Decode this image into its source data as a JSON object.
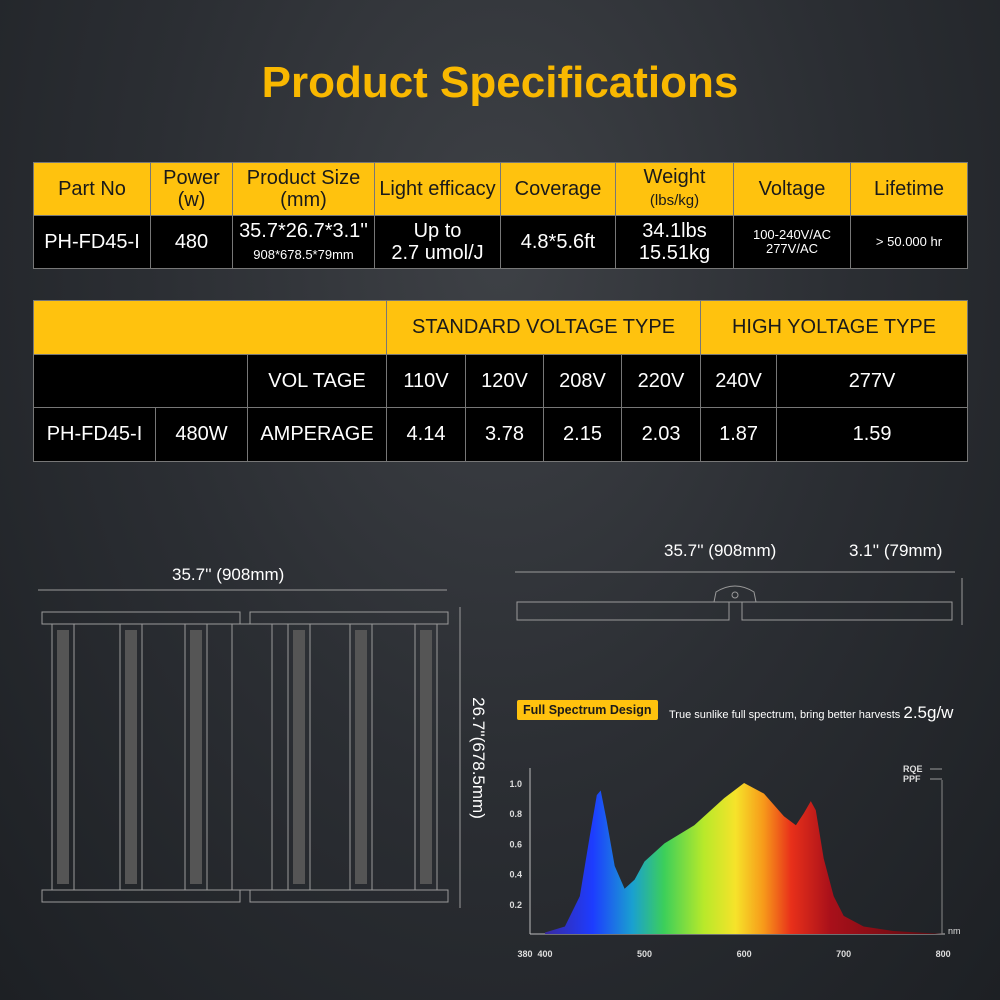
{
  "title": "Product Specifications",
  "spec_table": {
    "headers": [
      [
        "Part No",
        ""
      ],
      [
        "Power",
        "(w)"
      ],
      [
        "Product Size",
        "(mm)"
      ],
      [
        "Light efficacy",
        ""
      ],
      [
        "Coverage",
        ""
      ],
      [
        "Weight",
        "(lbs/kg)"
      ],
      [
        "Voltage",
        ""
      ],
      [
        "Lifetime",
        ""
      ]
    ],
    "row": {
      "part_no": "PH-FD45-I",
      "power": "480",
      "size_in": "35.7*26.7*3.1''",
      "size_mm": "908*678.5*79mm",
      "efficacy_1": "Up to",
      "efficacy_2": "2.7 umol/J",
      "coverage": "4.8*5.6ft",
      "weight_lbs": "34.1lbs",
      "weight_kg": "15.51kg",
      "voltage_1": "100-240V/AC",
      "voltage_2": "277V/AC",
      "lifetime": "> 50.000 hr"
    }
  },
  "voltage_table": {
    "standard_label": "STANDARD VOLTAGE TYPE",
    "high_label": "HIGH YOLTAGE TYPE",
    "voltage_label": "VOL TAGE",
    "voltages": [
      "110V",
      "120V",
      "208V",
      "220V",
      "240V",
      "277V"
    ],
    "part_no": "PH-FD45-I",
    "power": "480W",
    "amperage_label": "AMPERAGE",
    "amperages": [
      "4.14",
      "3.78",
      "2.15",
      "2.03",
      "1.87",
      "1.59"
    ]
  },
  "diagram": {
    "width_label": "35.7'' (908mm)",
    "height_label": "26.7''(678.5mm)",
    "side_width_label": "35.7'' (908mm)",
    "side_depth_label": "3.1'' (79mm)"
  },
  "spectrum": {
    "badge": "Full Spectrum Design",
    "tagline": "True sunlike full spectrum, bring better harvests",
    "yield": "2.5g/w"
  },
  "chart_data": {
    "type": "area",
    "title": "Full Spectrum Design",
    "xlabel": "nm",
    "ylabel": "",
    "xlim": [
      380,
      800
    ],
    "ylim": [
      0,
      1.0
    ],
    "xticks": [
      "380",
      "400",
      "500",
      "600",
      "700",
      "800"
    ],
    "yticks": [
      "0.2",
      "0.4",
      "0.6",
      "0.8",
      "1.0"
    ],
    "legend": [
      "RQE",
      "PPF"
    ],
    "legend_position": "top-right",
    "x": [
      400,
      420,
      435,
      445,
      452,
      456,
      462,
      470,
      480,
      490,
      500,
      520,
      550,
      580,
      600,
      620,
      640,
      652,
      660,
      667,
      672,
      680,
      690,
      700,
      720,
      750,
      800
    ],
    "y": [
      0.01,
      0.05,
      0.25,
      0.65,
      0.92,
      0.95,
      0.75,
      0.45,
      0.3,
      0.36,
      0.48,
      0.6,
      0.72,
      0.9,
      1.0,
      0.93,
      0.78,
      0.72,
      0.8,
      0.88,
      0.82,
      0.5,
      0.25,
      0.12,
      0.05,
      0.02,
      0.0
    ]
  }
}
